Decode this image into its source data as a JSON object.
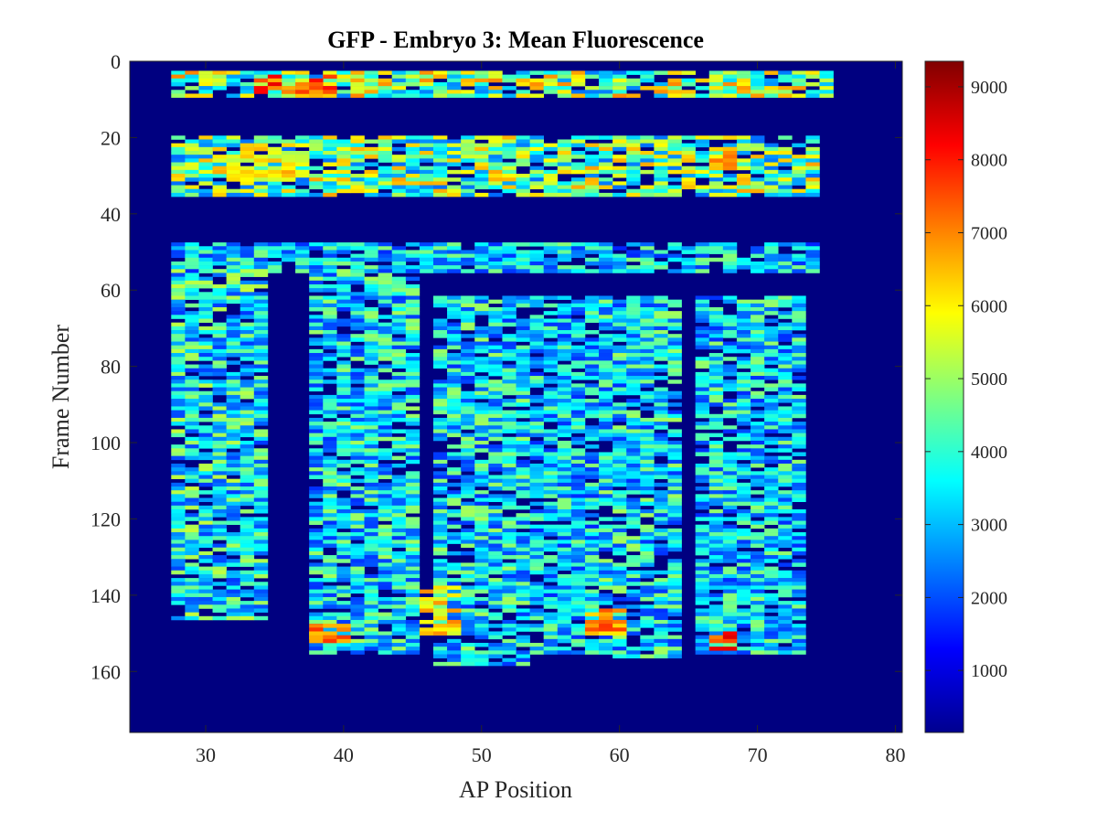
{
  "chart_data": {
    "type": "heatmap",
    "title": "GFP - Embryo 3: Mean Fluorescence",
    "xlabel": "AP Position",
    "ylabel": "Frame Number",
    "xlim": [
      24.5,
      80.5
    ],
    "ylim": [
      0,
      176
    ],
    "y_reversed": true,
    "x_ticks": [
      30,
      40,
      50,
      60,
      70,
      80
    ],
    "y_ticks": [
      0,
      20,
      40,
      60,
      80,
      100,
      120,
      140,
      160
    ],
    "colormap": "jet",
    "clim": [
      150,
      9350
    ],
    "colorbar_ticks": [
      1000,
      2000,
      3000,
      4000,
      5000,
      6000,
      7000,
      8000,
      9000
    ],
    "background_value": 150,
    "regions": [
      {
        "frames": [
          3,
          9
        ],
        "ap": [
          28,
          75
        ],
        "level": 5200
      },
      {
        "frames": [
          20,
          35
        ],
        "ap": [
          28,
          74
        ],
        "level": 5000
      },
      {
        "frames": [
          48,
          55
        ],
        "ap": [
          28,
          74
        ],
        "level": 3600
      },
      {
        "frames": [
          55,
          146
        ],
        "ap": [
          28,
          34
        ],
        "level": 4000
      },
      {
        "frames": [
          55,
          155
        ],
        "ap": [
          38,
          45
        ],
        "level": 3800
      },
      {
        "frames": [
          62,
          158
        ],
        "ap": [
          47,
          53
        ],
        "level": 3800
      },
      {
        "frames": [
          62,
          155
        ],
        "ap": [
          54,
          58
        ],
        "level": 3600
      },
      {
        "frames": [
          62,
          156
        ],
        "ap": [
          59,
          64
        ],
        "level": 3800
      },
      {
        "frames": [
          62,
          155
        ],
        "ap": [
          66,
          73
        ],
        "level": 3700
      }
    ],
    "hotspots": [
      {
        "frames": [
          4,
          8
        ],
        "ap": [
          34,
          39
        ],
        "value": 8200
      },
      {
        "frames": [
          22,
          31
        ],
        "ap": [
          31,
          37
        ],
        "value": 6400
      },
      {
        "frames": [
          22,
          28
        ],
        "ap": [
          67,
          68
        ],
        "value": 7200
      },
      {
        "frames": [
          138,
          150
        ],
        "ap": [
          46,
          48
        ],
        "value": 6800
      },
      {
        "frames": [
          144,
          150
        ],
        "ap": [
          58,
          60
        ],
        "value": 7600
      },
      {
        "frames": [
          148,
          152
        ],
        "ap": [
          38,
          40
        ],
        "value": 7400
      },
      {
        "frames": [
          150,
          154
        ],
        "ap": [
          67,
          68
        ],
        "value": 8200
      }
    ]
  }
}
